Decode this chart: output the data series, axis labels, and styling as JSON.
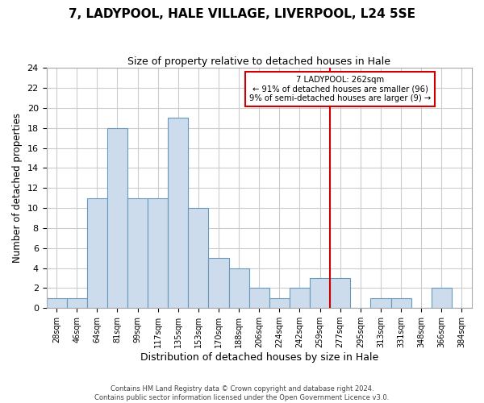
{
  "title": "7, LADYPOOL, HALE VILLAGE, LIVERPOOL, L24 5SE",
  "subtitle": "Size of property relative to detached houses in Hale",
  "xlabel": "Distribution of detached houses by size in Hale",
  "ylabel": "Number of detached properties",
  "bin_labels": [
    "28sqm",
    "46sqm",
    "64sqm",
    "81sqm",
    "99sqm",
    "117sqm",
    "135sqm",
    "153sqm",
    "170sqm",
    "188sqm",
    "206sqm",
    "224sqm",
    "242sqm",
    "259sqm",
    "277sqm",
    "295sqm",
    "313sqm",
    "331sqm",
    "348sqm",
    "366sqm",
    "384sqm"
  ],
  "bar_heights": [
    1,
    1,
    11,
    18,
    11,
    11,
    19,
    10,
    5,
    4,
    2,
    1,
    2,
    3,
    3,
    0,
    1,
    1,
    0,
    2,
    0
  ],
  "bar_color": "#ccdcec",
  "bar_edge_color": "#6699bb",
  "grid_color": "#cccccc",
  "vline_x_index": 13.5,
  "vline_color": "#cc0000",
  "annotation_title": "7 LADYPOOL: 262sqm",
  "annotation_line1": "← 91% of detached houses are smaller (96)",
  "annotation_line2": "9% of semi-detached houses are larger (9) →",
  "annotation_box_color": "#cc0000",
  "ylim": [
    0,
    24
  ],
  "yticks": [
    0,
    2,
    4,
    6,
    8,
    10,
    12,
    14,
    16,
    18,
    20,
    22,
    24
  ],
  "footer_line1": "Contains HM Land Registry data © Crown copyright and database right 2024.",
  "footer_line2": "Contains public sector information licensed under the Open Government Licence v3.0."
}
